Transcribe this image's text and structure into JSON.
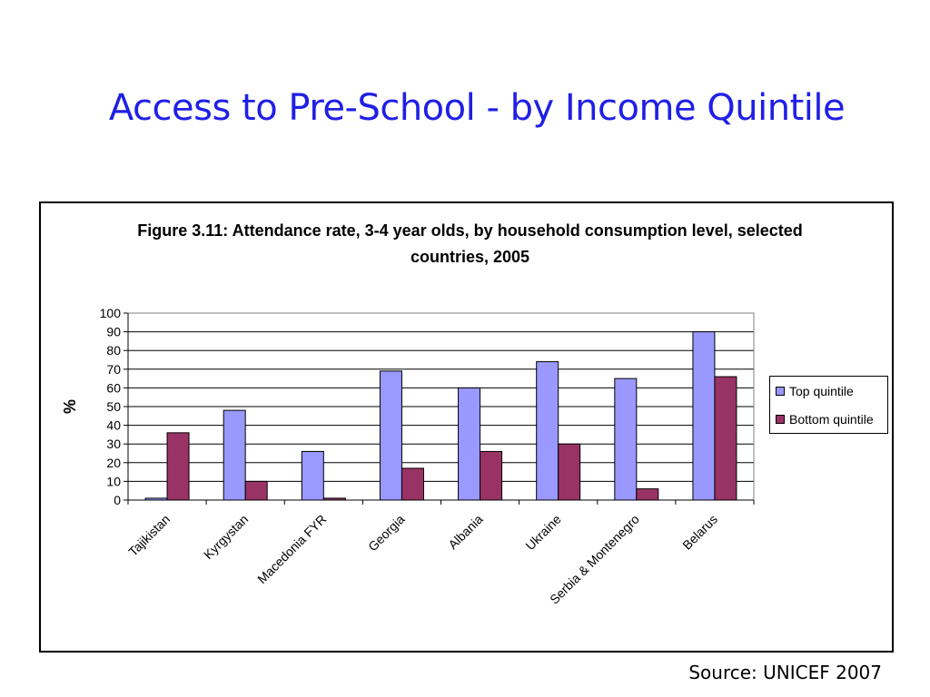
{
  "slide": {
    "title": "Access to Pre-School - by Income Quintile",
    "source": "Source: UNICEF 2007"
  },
  "chart_data": {
    "type": "bar",
    "title": "Figure 3.11: Attendance rate, 3-4 year olds, by household consumption level, selected countries, 2005",
    "ylabel": "%",
    "xlabel": "",
    "ylim": [
      0,
      100
    ],
    "yticks": [
      0,
      10,
      20,
      30,
      40,
      50,
      60,
      70,
      80,
      90,
      100
    ],
    "grid": true,
    "legend_position": "right",
    "categories": [
      "Tajikistan",
      "Kyrgystan",
      "Macedonia FYR",
      "Georgia",
      "Albania",
      "Ukraine",
      "Serbia & Montenegro",
      "Belarus"
    ],
    "series": [
      {
        "name": "Top quintile",
        "color": "#9999ff",
        "values": [
          1,
          48,
          26,
          69,
          60,
          74,
          65,
          90
        ]
      },
      {
        "name": "Bottom quintile",
        "color": "#993366",
        "values": [
          36,
          10,
          1,
          17,
          26,
          30,
          6,
          66
        ]
      }
    ]
  }
}
